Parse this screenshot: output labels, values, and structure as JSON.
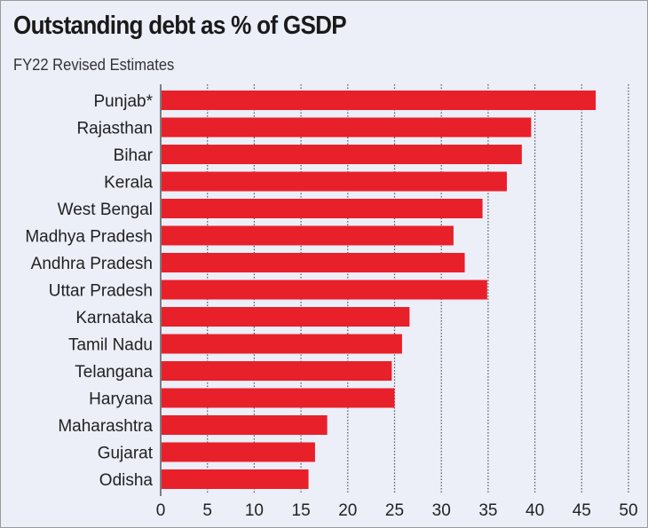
{
  "chart_data": {
    "type": "bar",
    "orientation": "horizontal",
    "title": "Outstanding debt as % of GSDP",
    "subtitle": "FY22 Revised Estimates",
    "categories": [
      "Punjab*",
      "Rajasthan",
      "Bihar",
      "Kerala",
      "West Bengal",
      "Madhya Pradesh",
      "Andhra Pradesh",
      "Uttar Pradesh",
      "Karnataka",
      "Tamil Nadu",
      "Telangana",
      "Haryana",
      "Maharashtra",
      "Gujarat",
      "Odisha"
    ],
    "values": [
      46.5,
      39.6,
      38.6,
      37.0,
      34.4,
      31.3,
      32.5,
      34.9,
      26.6,
      25.8,
      24.7,
      25.0,
      17.8,
      16.5,
      15.8
    ],
    "xlabel": "",
    "ylabel": "",
    "xlim": [
      0,
      50
    ],
    "xticks": [
      "0",
      "5",
      "10",
      "15",
      "20",
      "25",
      "30",
      "35",
      "40",
      "45",
      "50"
    ],
    "grid": "vertical dotted",
    "bar_color": "#e8202a"
  }
}
